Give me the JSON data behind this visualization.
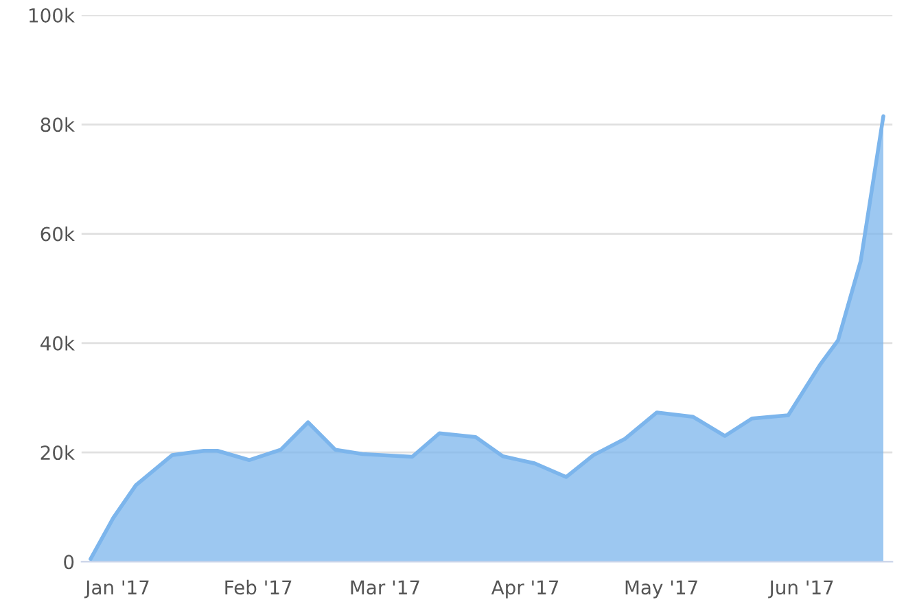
{
  "chart_data": {
    "type": "area",
    "x": [
      "2016-12-26",
      "2016-12-31",
      "2017-01-05",
      "2017-01-13",
      "2017-01-20",
      "2017-01-23",
      "2017-01-30",
      "2017-02-06",
      "2017-02-12",
      "2017-02-18",
      "2017-02-24",
      "2017-03-07",
      "2017-03-13",
      "2017-03-21",
      "2017-03-27",
      "2017-04-03",
      "2017-04-10",
      "2017-04-16",
      "2017-04-23",
      "2017-04-30",
      "2017-05-08",
      "2017-05-15",
      "2017-05-21",
      "2017-05-29",
      "2017-06-05",
      "2017-06-09",
      "2017-06-14",
      "2017-06-19"
    ],
    "series": [
      {
        "color": "#7cb5ec",
        "values": [
          500,
          8000,
          14000,
          19500,
          20300,
          20300,
          18600,
          20500,
          25500,
          20500,
          19700,
          19200,
          23500,
          22800,
          19300,
          18000,
          15500,
          19500,
          22500,
          27300,
          26500,
          23000,
          26200,
          26800,
          36000,
          40500,
          55000,
          81500
        ]
      }
    ],
    "xlim": [
      "2016-12-24",
      "2017-06-21"
    ],
    "xticks": [
      {
        "value": "2017-01-01",
        "label": "Jan '17"
      },
      {
        "value": "2017-02-01",
        "label": "Feb '17"
      },
      {
        "value": "2017-03-01",
        "label": "Mar '17"
      },
      {
        "value": "2017-04-01",
        "label": "Apr '17"
      },
      {
        "value": "2017-05-01",
        "label": "May '17"
      },
      {
        "value": "2017-06-01",
        "label": "Jun '17"
      }
    ],
    "ylim": [
      0,
      100000
    ],
    "yticks": [
      0,
      {
        "value": 20000,
        "label": "20k"
      },
      {
        "value": 40000,
        "label": "40k"
      },
      {
        "value": 60000,
        "label": "60k"
      },
      {
        "value": 80000,
        "label": "80k"
      },
      {
        "value": 100000,
        "label": "100k"
      }
    ],
    "grid": "y"
  }
}
